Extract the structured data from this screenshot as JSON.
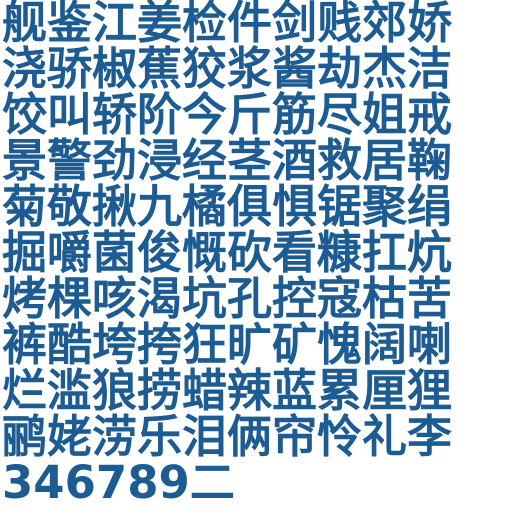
{
  "rows": [
    "舰鉴江姜检件剑贱郊娇",
    "浇骄椒蕉狡浆酱劫杰洁",
    "饺叫轿阶今斤筋尽姐戒",
    "景警劲浸经茎酒救居鞠",
    "菊敬揪九橘俱惧锯聚绢",
    "掘嚼菌俊慨砍看糠扛炕",
    "烤棵咳渴坑孔控寇枯苦",
    "裤酷垮挎狂旷矿愧阔喇",
    "烂滥狼捞蜡辣蓝累厘狸",
    "鹂姥涝乐泪俩帘怜礼李",
    "346789二"
  ],
  "colors": {
    "text": "#1c5c93",
    "background": "#ffffff"
  }
}
